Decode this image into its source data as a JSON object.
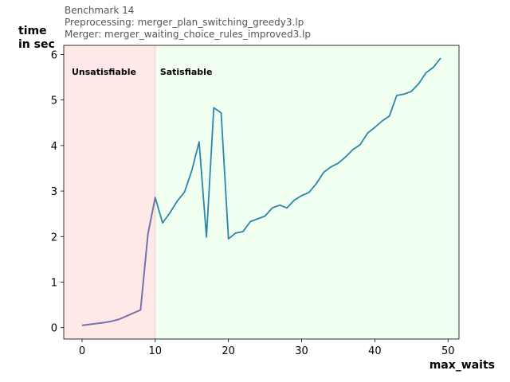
{
  "chart_data": {
    "type": "line",
    "title_lines": [
      "Benchmark 14",
      "Preprocessing: merger_plan_switching_greedy3.lp",
      "Merger: merger_waiting_choice_rules_improved3.lp"
    ],
    "xlabel": "max_waits",
    "ylabel_lines": [
      "time",
      "in sec"
    ],
    "xlim": [
      -2.5,
      51.5
    ],
    "ylim": [
      -0.25,
      6.2
    ],
    "xticks": [
      0,
      10,
      20,
      30,
      40,
      50
    ],
    "yticks": [
      0,
      1,
      2,
      3,
      4,
      5,
      6
    ],
    "regions": [
      {
        "label": "Unsatisfiable",
        "x_start": -2.5,
        "x_end": 10,
        "color": "#ffe8e8"
      },
      {
        "label": "Satisfiable",
        "x_start": 10,
        "x_end": 51.5,
        "color": "#f0fff0"
      }
    ],
    "series": [
      {
        "color": "#2a87a8",
        "x": [
          0,
          1,
          2,
          3,
          4,
          5,
          6,
          7,
          8,
          9,
          10,
          11,
          12,
          13,
          14,
          15,
          16,
          17,
          18,
          19,
          20,
          21,
          22,
          23,
          24,
          25,
          26,
          27,
          28,
          29,
          30,
          31,
          32,
          33,
          34,
          35,
          36,
          37,
          38,
          39,
          40,
          41,
          42,
          43,
          44,
          45,
          46,
          47,
          48,
          49
        ],
        "y": [
          0.05,
          0.07,
          0.09,
          0.11,
          0.14,
          0.18,
          0.25,
          0.32,
          0.39,
          2.05,
          2.86,
          2.3,
          2.52,
          2.78,
          2.98,
          3.45,
          4.08,
          1.99,
          4.83,
          4.72,
          1.95,
          2.08,
          2.11,
          2.33,
          2.39,
          2.45,
          2.63,
          2.69,
          2.63,
          2.8,
          2.9,
          2.97,
          3.16,
          3.41,
          3.53,
          3.61,
          3.75,
          3.91,
          4.02,
          4.27,
          4.4,
          4.54,
          4.65,
          5.1,
          5.13,
          5.19,
          5.36,
          5.6,
          5.72,
          5.92
        ]
      }
    ],
    "unsat_line_color": "#7a6fa8"
  }
}
